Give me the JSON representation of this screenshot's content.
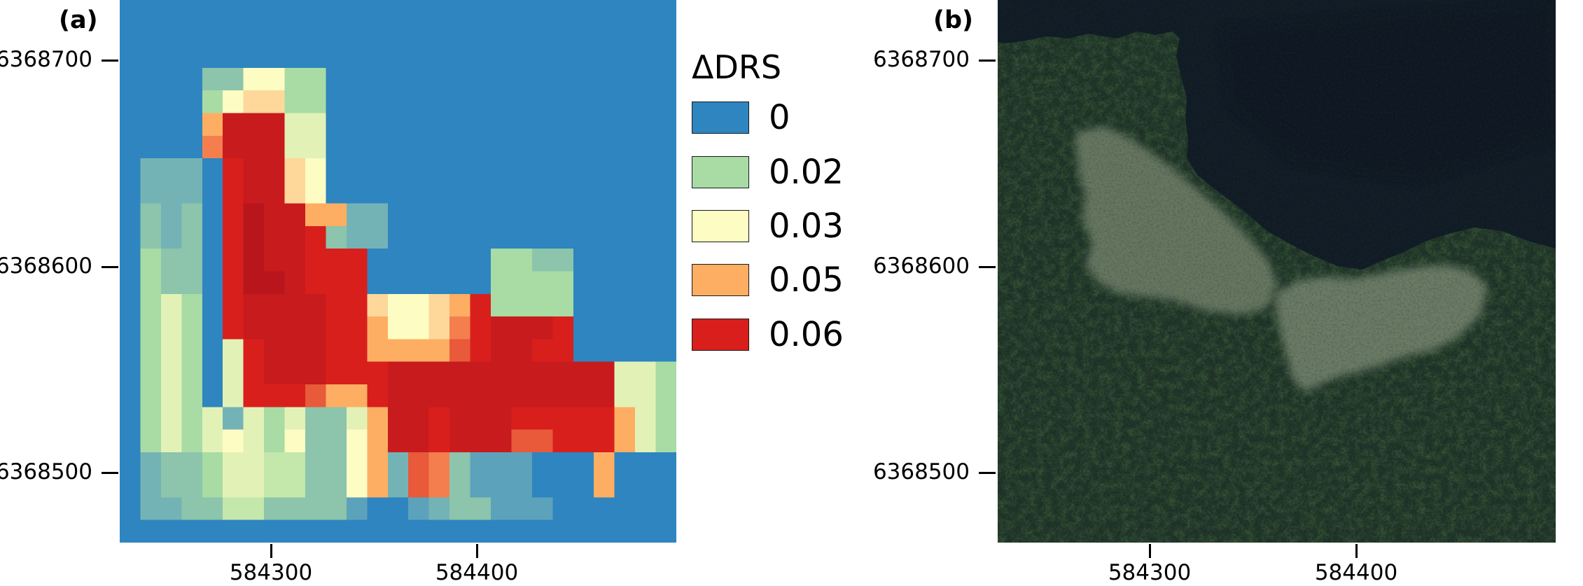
{
  "panels": {
    "a": {
      "label": "(a)"
    },
    "b": {
      "label": "(b)"
    }
  },
  "axes": {
    "y_ticks": [
      "6368700",
      "6368600",
      "6368500"
    ],
    "x_ticks": [
      "584300",
      "584400"
    ]
  },
  "legend": {
    "title": "ΔDRS",
    "items": [
      {
        "label": "0",
        "color": "#2e85bf"
      },
      {
        "label": "0.02",
        "color": "#a8dca4"
      },
      {
        "label": "0.03",
        "color": "#fdfcc2"
      },
      {
        "label": "0.05",
        "color": "#fdae62"
      },
      {
        "label": "0.06",
        "color": "#d91f1c"
      }
    ]
  },
  "raster": {
    "columns": 27,
    "rows": 24,
    "palette": {
      "0": "#2e85bf",
      "1": "#3a8cbf",
      "2": "#5da2bb",
      "3": "#74b3b5",
      "4": "#8cc4ac",
      "5": "#a8dca4",
      "6": "#c4e7ab",
      "7": "#e2f2b6",
      "8": "#fdfcc2",
      "9": "#fdd89a",
      "A": "#fdae62",
      "B": "#f57e4e",
      "C": "#e85a3a",
      "D": "#d91f1c",
      "E": "#c81b1d",
      "F": "#b8161c"
    },
    "cells": [
      "000000000000000000000000000",
      "000000000000000000000000000",
      "000000000000000000000000000",
      "000044885500000000000000000",
      "000058995500000000000000000",
      "0000AEEE7700000000000000000",
      "0000BEEE7700000000000000000",
      "03330DEE9800000000000000000",
      "03330DEE9800000000000000000",
      "04340DFEEAA3300000000000000",
      "04340DFEED43300000000000000",
      "05440DFEEDDD000000554400000",
      "05440DFFEDDD000000555500000",
      "05750DEEEEDD9889AD555500000",
      "05750DEEEEDDA889BDEEED00000",
      "057507DEEEDDAAAACDEEDD00000",
      "057507DEEEDDDEEEEEEEEEEE775",
      "057507DDDCAADEEEEEEEEEEE775",
      "057573757447AEEDEEEDDDDDA75",
      "057578758448AEEDEEECCDDDA75",
      "034457766448A3CB4222000A000",
      "034457766448A3CB4222000A000",
      "033446644442002344222000000",
      "000000000000000000000000000"
    ]
  }
}
